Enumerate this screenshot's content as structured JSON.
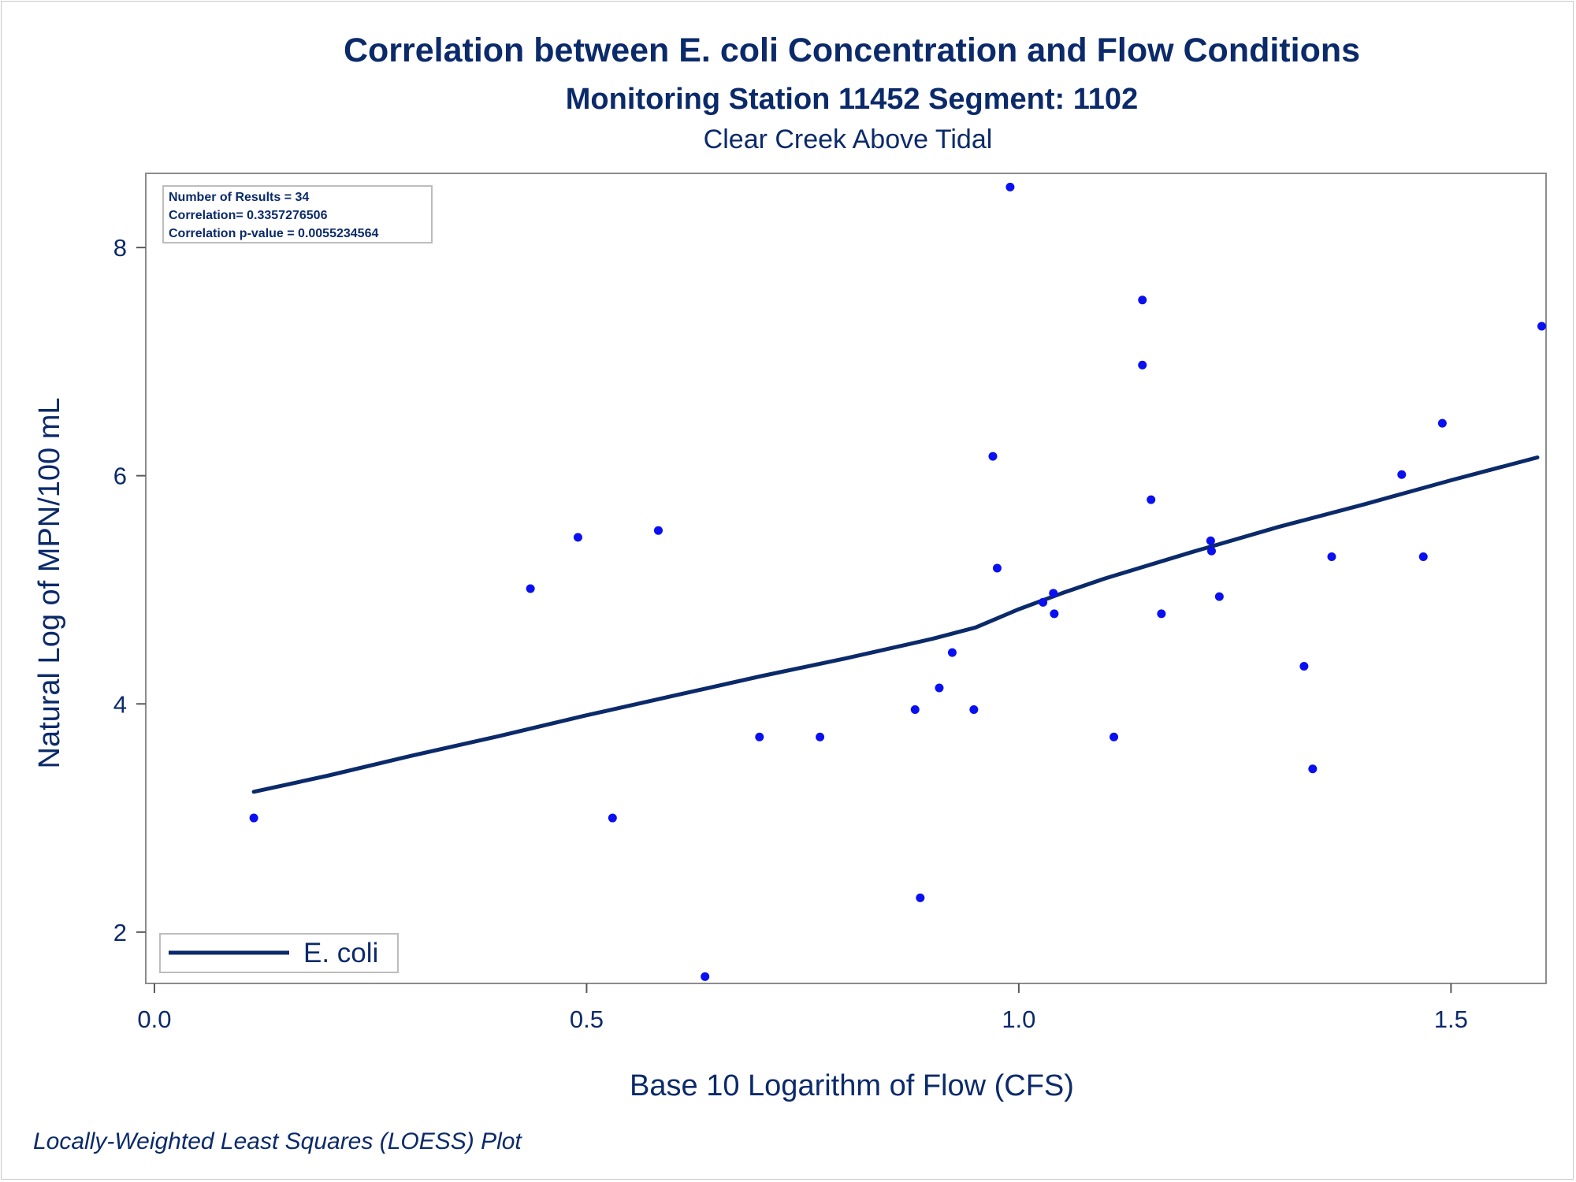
{
  "chart_data": {
    "type": "scatter",
    "title": "Correlation between E. coli Concentration and Flow Conditions",
    "subtitle": "Monitoring Station 11452 Segment: 1102",
    "subtitle2": "Clear Creek Above Tidal",
    "xlabel": "Base 10 Logarithm of Flow (CFS)",
    "ylabel": "Natural Log of MPN/100 mL",
    "footnote": "Locally-Weighted Least Squares (LOESS) Plot",
    "xlim": [
      -0.01,
      1.61
    ],
    "ylim": [
      1.55,
      8.65
    ],
    "xticks": [
      0.0,
      0.5,
      1.0,
      1.5
    ],
    "xtick_labels": [
      "0.0",
      "0.5",
      "1.0",
      "1.5"
    ],
    "yticks": [
      2,
      4,
      6,
      8
    ],
    "ytick_labels": [
      "2",
      "4",
      "6",
      "8"
    ],
    "grid": false,
    "stats": {
      "n_results": "Number of Results = 34",
      "correlation": "Correlation= 0.3357276506",
      "p_value": "Correlation p-value = 0.0055234564"
    },
    "legend": {
      "position": "bottom-left",
      "label": "E. coli"
    },
    "colors": {
      "points": "#0a10f0",
      "line": "#0b2a6a",
      "text": "#0b2a6a"
    },
    "points": [
      {
        "x": 0.115,
        "y": 3.0
      },
      {
        "x": 0.435,
        "y": 5.01
      },
      {
        "x": 0.49,
        "y": 5.46
      },
      {
        "x": 0.53,
        "y": 3.0
      },
      {
        "x": 0.583,
        "y": 5.52
      },
      {
        "x": 0.637,
        "y": 1.61
      },
      {
        "x": 0.7,
        "y": 3.71
      },
      {
        "x": 0.77,
        "y": 3.71
      },
      {
        "x": 0.88,
        "y": 3.95
      },
      {
        "x": 0.886,
        "y": 2.3
      },
      {
        "x": 0.908,
        "y": 4.14
      },
      {
        "x": 0.923,
        "y": 4.45
      },
      {
        "x": 0.948,
        "y": 3.95
      },
      {
        "x": 0.97,
        "y": 6.17
      },
      {
        "x": 0.975,
        "y": 5.19
      },
      {
        "x": 0.99,
        "y": 8.53
      },
      {
        "x": 1.028,
        "y": 4.89
      },
      {
        "x": 1.04,
        "y": 4.97
      },
      {
        "x": 1.041,
        "y": 4.79
      },
      {
        "x": 1.11,
        "y": 3.71
      },
      {
        "x": 1.143,
        "y": 7.54
      },
      {
        "x": 1.143,
        "y": 6.97
      },
      {
        "x": 1.153,
        "y": 5.79
      },
      {
        "x": 1.165,
        "y": 4.79
      },
      {
        "x": 1.222,
        "y": 5.43
      },
      {
        "x": 1.223,
        "y": 5.34
      },
      {
        "x": 1.232,
        "y": 4.94
      },
      {
        "x": 1.33,
        "y": 4.33
      },
      {
        "x": 1.34,
        "y": 3.43
      },
      {
        "x": 1.362,
        "y": 5.29
      },
      {
        "x": 1.443,
        "y": 6.01
      },
      {
        "x": 1.468,
        "y": 5.29
      },
      {
        "x": 1.49,
        "y": 6.46
      },
      {
        "x": 1.605,
        "y": 7.31
      }
    ],
    "loess": {
      "name": "E. coli",
      "x": [
        0.115,
        0.2,
        0.3,
        0.4,
        0.5,
        0.6,
        0.7,
        0.8,
        0.9,
        0.95,
        1.0,
        1.05,
        1.1,
        1.2,
        1.3,
        1.4,
        1.5,
        1.6
      ],
      "y": [
        3.23,
        3.37,
        3.55,
        3.72,
        3.9,
        4.07,
        4.24,
        4.4,
        4.57,
        4.67,
        4.83,
        4.97,
        5.1,
        5.33,
        5.55,
        5.75,
        5.96,
        6.16
      ]
    }
  }
}
